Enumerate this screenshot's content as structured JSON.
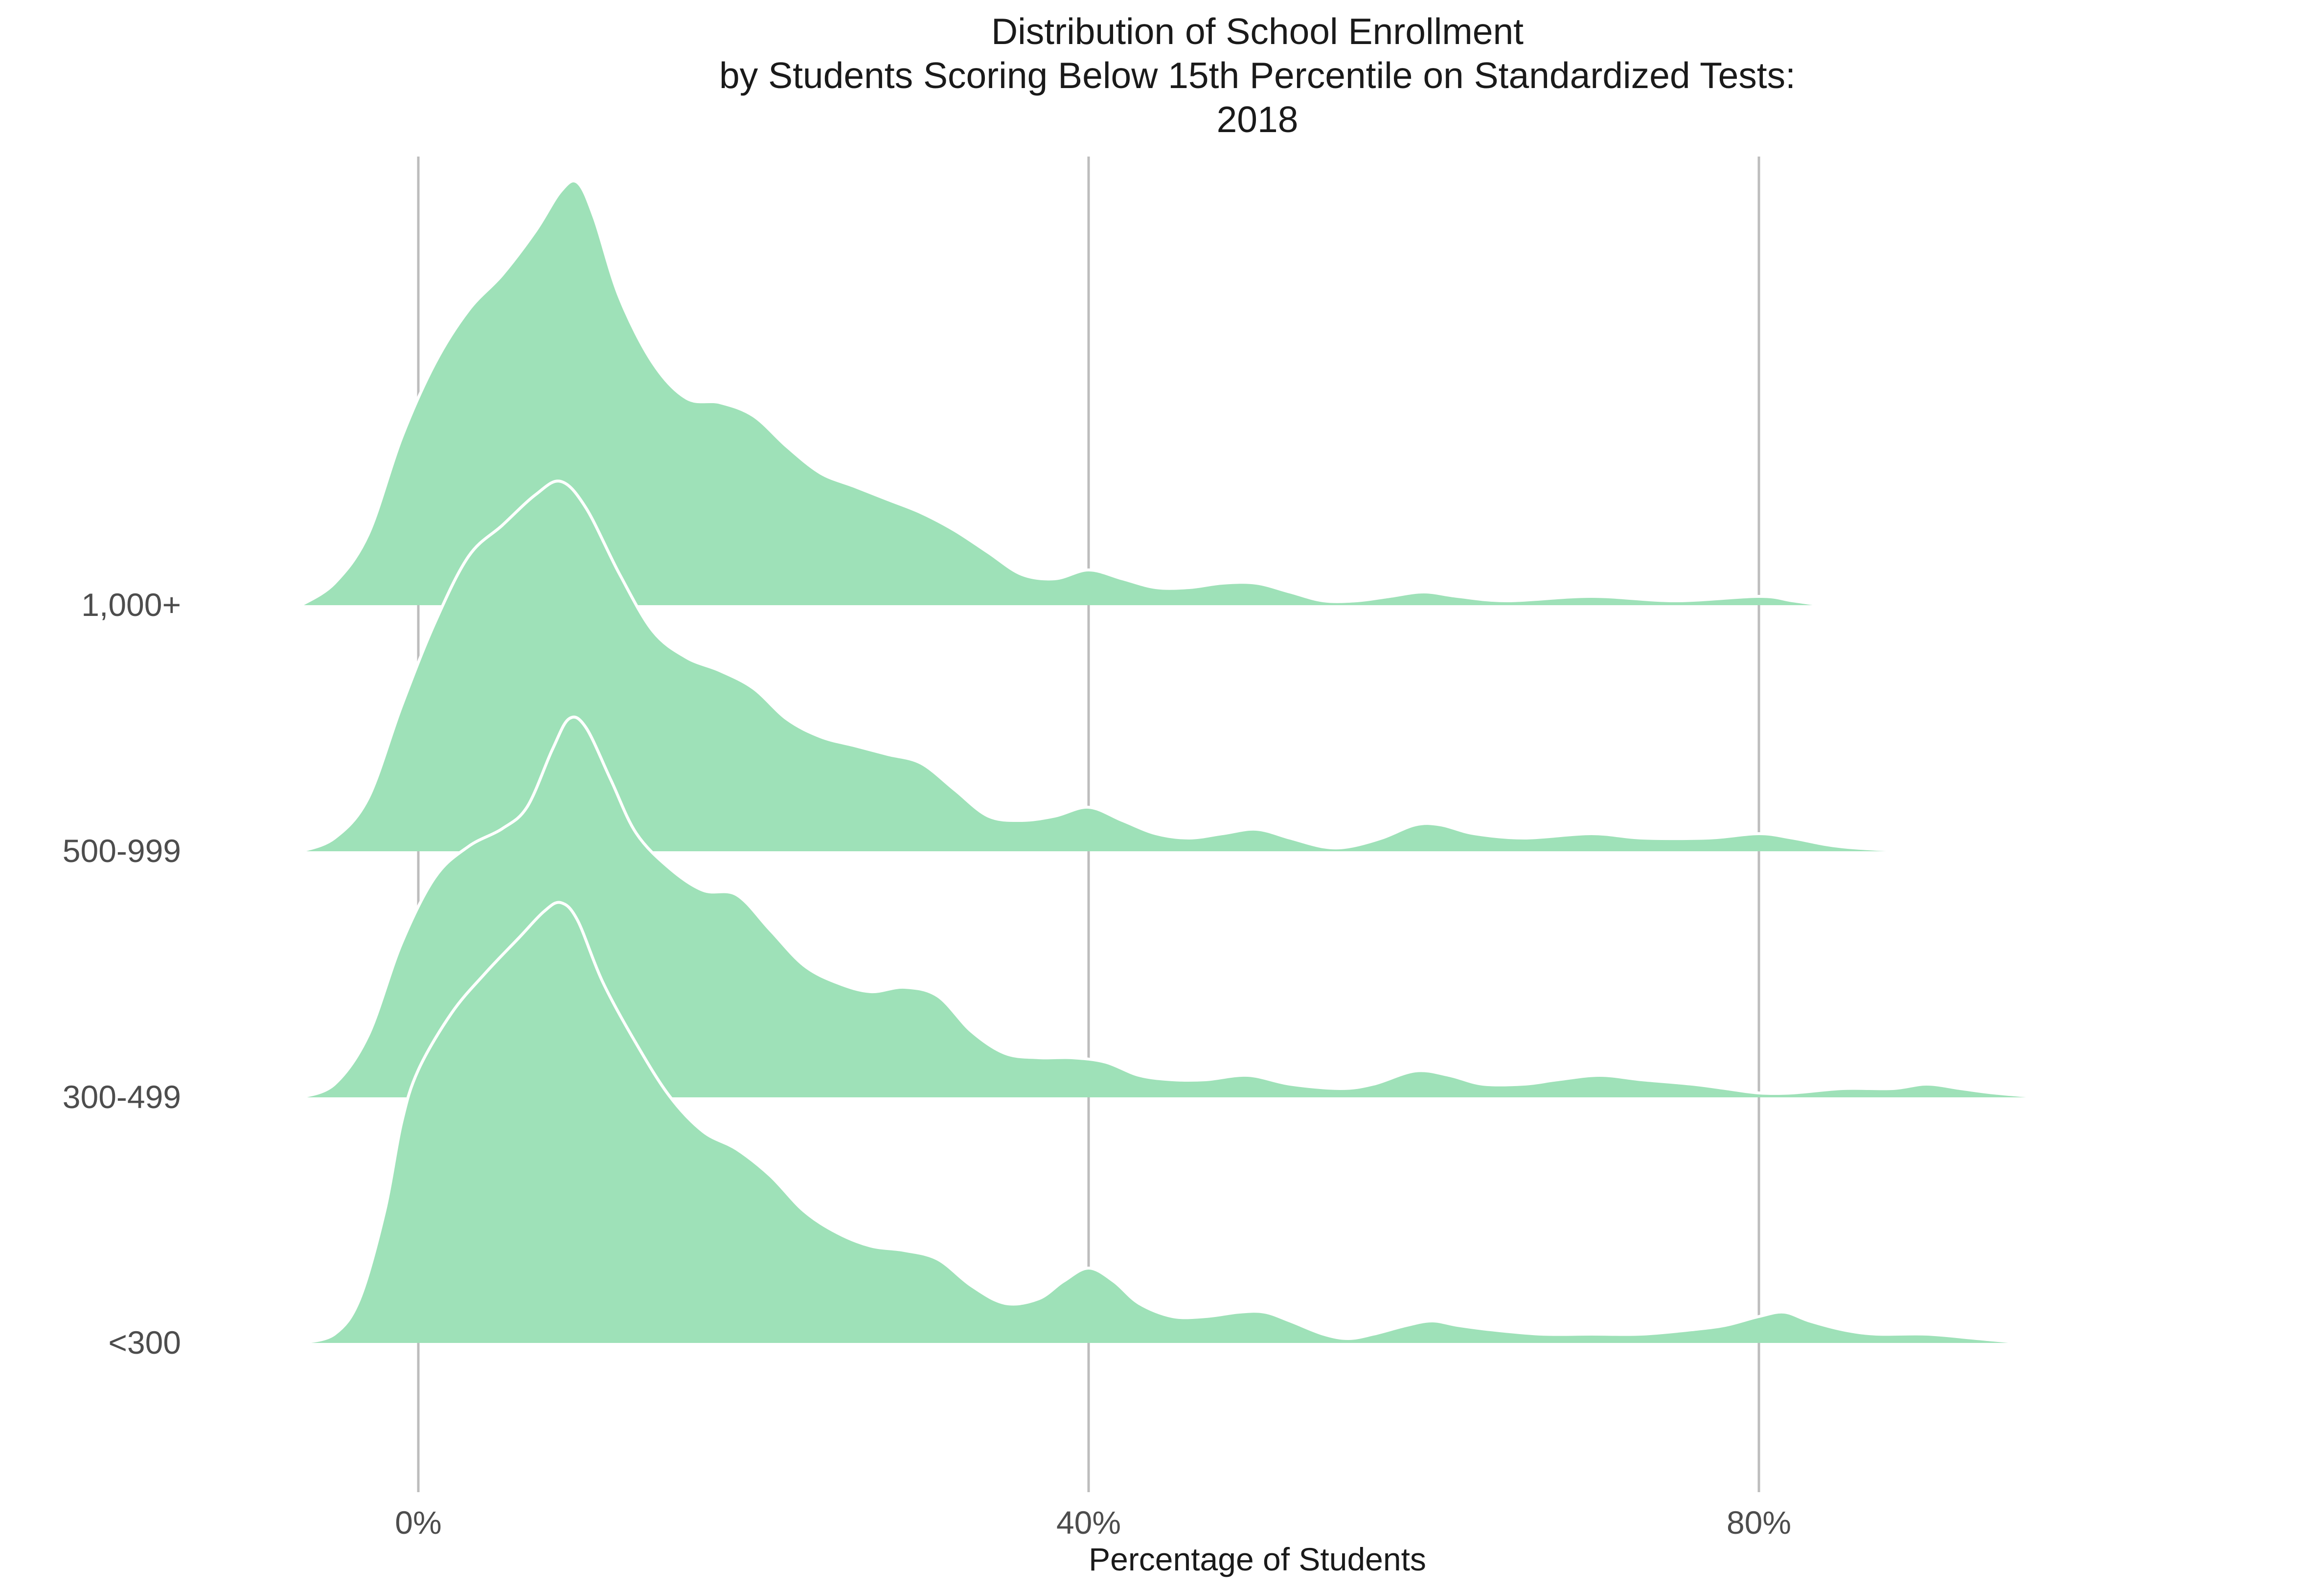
{
  "chart_data": {
    "type": "ridgeline",
    "title_lines": [
      "Distribution of School Enrollment",
      "by Students Scoring Below 15th Percentile on Standardized Tests:",
      "2018"
    ],
    "xlabel": "Percentage of Students",
    "ylabel": "",
    "x_ticks": [
      {
        "value": 0,
        "label": "0%"
      },
      {
        "value": 40,
        "label": "40%"
      },
      {
        "value": 80,
        "label": "80%"
      }
    ],
    "xlim": [
      -7,
      101
    ],
    "grid": "vertical major gridlines",
    "fill_color": "#9ee1b8",
    "outline_color": "#ffffff",
    "gridline_color": "#bdbdbd",
    "series": [
      {
        "name": "<300",
        "points": [
          [
            -7,
            0
          ],
          [
            -5,
            0.02
          ],
          [
            -3.5,
            0.1
          ],
          [
            -2,
            0.3
          ],
          [
            -1,
            0.5
          ],
          [
            0,
            0.62
          ],
          [
            2,
            0.75
          ],
          [
            4,
            0.84
          ],
          [
            6,
            0.92
          ],
          [
            7.5,
            0.98
          ],
          [
            8.5,
            1.0
          ],
          [
            9.5,
            0.96
          ],
          [
            11,
            0.82
          ],
          [
            13,
            0.68
          ],
          [
            15,
            0.56
          ],
          [
            17,
            0.48
          ],
          [
            19,
            0.44
          ],
          [
            21,
            0.38
          ],
          [
            23,
            0.3
          ],
          [
            25,
            0.25
          ],
          [
            27,
            0.22
          ],
          [
            29,
            0.21
          ],
          [
            31,
            0.19
          ],
          [
            33,
            0.13
          ],
          [
            35,
            0.09
          ],
          [
            37,
            0.1
          ],
          [
            38.5,
            0.14
          ],
          [
            40,
            0.17
          ],
          [
            41.5,
            0.14
          ],
          [
            43,
            0.09
          ],
          [
            45,
            0.06
          ],
          [
            47,
            0.06
          ],
          [
            49,
            0.07
          ],
          [
            50.5,
            0.07
          ],
          [
            52,
            0.05
          ],
          [
            54,
            0.02
          ],
          [
            55.5,
            0.01
          ],
          [
            57,
            0.02
          ],
          [
            59,
            0.04
          ],
          [
            60.5,
            0.05
          ],
          [
            62,
            0.04
          ],
          [
            64,
            0.03
          ],
          [
            67,
            0.02
          ],
          [
            70,
            0.02
          ],
          [
            73,
            0.02
          ],
          [
            76,
            0.03
          ],
          [
            78,
            0.04
          ],
          [
            80,
            0.06
          ],
          [
            81.5,
            0.07
          ],
          [
            83,
            0.05
          ],
          [
            85,
            0.03
          ],
          [
            87,
            0.02
          ],
          [
            90,
            0.02
          ],
          [
            93,
            0.01
          ],
          [
            96,
            0.0
          ],
          [
            98,
            0.0
          ]
        ]
      },
      {
        "name": "300-499",
        "points": [
          [
            -7,
            0
          ],
          [
            -5,
            0.03
          ],
          [
            -3,
            0.14
          ],
          [
            -1,
            0.35
          ],
          [
            1,
            0.5
          ],
          [
            3,
            0.57
          ],
          [
            5,
            0.61
          ],
          [
            6.5,
            0.66
          ],
          [
            8,
            0.79
          ],
          [
            9,
            0.86
          ],
          [
            10,
            0.84
          ],
          [
            11.5,
            0.72
          ],
          [
            13,
            0.6
          ],
          [
            15,
            0.52
          ],
          [
            17,
            0.47
          ],
          [
            19,
            0.46
          ],
          [
            21,
            0.38
          ],
          [
            23,
            0.3
          ],
          [
            25,
            0.26
          ],
          [
            27,
            0.24
          ],
          [
            29,
            0.25
          ],
          [
            31,
            0.23
          ],
          [
            33,
            0.15
          ],
          [
            35,
            0.1
          ],
          [
            37,
            0.09
          ],
          [
            39,
            0.09
          ],
          [
            41,
            0.08
          ],
          [
            43,
            0.05
          ],
          [
            45,
            0.04
          ],
          [
            47,
            0.04
          ],
          [
            49.5,
            0.05
          ],
          [
            52,
            0.03
          ],
          [
            55,
            0.02
          ],
          [
            57,
            0.03
          ],
          [
            59.5,
            0.06
          ],
          [
            61.5,
            0.05
          ],
          [
            63.5,
            0.03
          ],
          [
            66,
            0.03
          ],
          [
            68,
            0.04
          ],
          [
            70.5,
            0.05
          ],
          [
            73,
            0.04
          ],
          [
            76,
            0.03
          ],
          [
            78,
            0.02
          ],
          [
            80,
            0.01
          ],
          [
            82,
            0.01
          ],
          [
            85,
            0.02
          ],
          [
            88,
            0.02
          ],
          [
            90,
            0.03
          ],
          [
            92,
            0.02
          ],
          [
            94,
            0.01
          ],
          [
            97,
            0.0
          ]
        ]
      },
      {
        "name": "500-999",
        "points": [
          [
            -7,
            0
          ],
          [
            -5,
            0.03
          ],
          [
            -3,
            0.12
          ],
          [
            -1,
            0.33
          ],
          [
            1,
            0.52
          ],
          [
            3,
            0.67
          ],
          [
            5,
            0.74
          ],
          [
            7,
            0.81
          ],
          [
            8.5,
            0.84
          ],
          [
            10,
            0.78
          ],
          [
            12,
            0.63
          ],
          [
            14,
            0.5
          ],
          [
            16,
            0.44
          ],
          [
            18,
            0.41
          ],
          [
            20,
            0.37
          ],
          [
            22,
            0.3
          ],
          [
            24,
            0.26
          ],
          [
            26,
            0.24
          ],
          [
            28,
            0.22
          ],
          [
            30,
            0.2
          ],
          [
            32,
            0.14
          ],
          [
            34,
            0.08
          ],
          [
            36,
            0.07
          ],
          [
            38,
            0.08
          ],
          [
            40,
            0.1
          ],
          [
            42,
            0.07
          ],
          [
            44,
            0.04
          ],
          [
            46,
            0.03
          ],
          [
            48,
            0.04
          ],
          [
            50,
            0.05
          ],
          [
            52,
            0.03
          ],
          [
            54,
            0.01
          ],
          [
            55.5,
            0.01
          ],
          [
            57.5,
            0.03
          ],
          [
            59.5,
            0.06
          ],
          [
            61,
            0.06
          ],
          [
            63,
            0.04
          ],
          [
            66,
            0.03
          ],
          [
            70,
            0.04
          ],
          [
            73,
            0.03
          ],
          [
            77,
            0.03
          ],
          [
            80,
            0.04
          ],
          [
            82,
            0.03
          ],
          [
            85,
            0.01
          ],
          [
            90,
            0.0
          ],
          [
            94,
            0.0
          ]
        ]
      },
      {
        "name": "1,000+",
        "points": [
          [
            -7,
            0
          ],
          [
            -5,
            0.05
          ],
          [
            -3,
            0.16
          ],
          [
            -1,
            0.38
          ],
          [
            1,
            0.55
          ],
          [
            3,
            0.67
          ],
          [
            5,
            0.75
          ],
          [
            7,
            0.85
          ],
          [
            8.5,
            0.94
          ],
          [
            9.5,
            0.96
          ],
          [
            10.5,
            0.88
          ],
          [
            12,
            0.7
          ],
          [
            14,
            0.55
          ],
          [
            16,
            0.47
          ],
          [
            18,
            0.46
          ],
          [
            20,
            0.43
          ],
          [
            22,
            0.36
          ],
          [
            24,
            0.3
          ],
          [
            26,
            0.27
          ],
          [
            28,
            0.24
          ],
          [
            30,
            0.21
          ],
          [
            32,
            0.17
          ],
          [
            34,
            0.12
          ],
          [
            36,
            0.07
          ],
          [
            38,
            0.06
          ],
          [
            40,
            0.08
          ],
          [
            42,
            0.06
          ],
          [
            44,
            0.04
          ],
          [
            46,
            0.04
          ],
          [
            48,
            0.05
          ],
          [
            50,
            0.05
          ],
          [
            52,
            0.03
          ],
          [
            54,
            0.01
          ],
          [
            56,
            0.01
          ],
          [
            58,
            0.02
          ],
          [
            60,
            0.03
          ],
          [
            62,
            0.02
          ],
          [
            65,
            0.01
          ],
          [
            70,
            0.02
          ],
          [
            75,
            0.01
          ],
          [
            80,
            0.02
          ],
          [
            82,
            0.01
          ],
          [
            84,
            0.0
          ],
          [
            86,
            0.0
          ]
        ]
      }
    ]
  }
}
